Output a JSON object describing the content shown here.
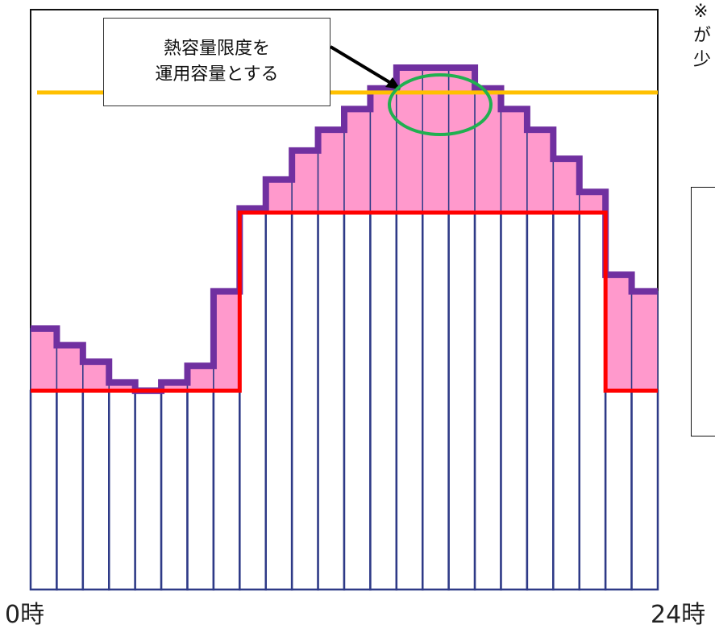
{
  "chart_data": {
    "type": "bar",
    "categories_count": 24,
    "demand": [
      63,
      59,
      55,
      50,
      48,
      50,
      54,
      72,
      92,
      99,
      106,
      111,
      116,
      121,
      126,
      126,
      126,
      121,
      116,
      111,
      104,
      96,
      76,
      72
    ],
    "limit_step": [
      48,
      48,
      48,
      48,
      48,
      48,
      48,
      48,
      91,
      91,
      91,
      91,
      91,
      91,
      91,
      91,
      91,
      91,
      91,
      91,
      91,
      91,
      48,
      48
    ],
    "operating_capacity_line": 120,
    "ylim": [
      0,
      140
    ],
    "x_start_label": "0時",
    "x_end_label": "24時",
    "colors": {
      "bar_fill": "#ff99cc",
      "bar_outline": "#2e3a87",
      "demand_line": "#7030a0",
      "limit_line": "#ff0000",
      "capacity_line": "#ffc000",
      "highlight_circle": "#20b050"
    }
  },
  "callout": {
    "line1": "熱容量限度を",
    "line2": "運用容量とする"
  },
  "note": {
    "line1": "※",
    "line2": "が",
    "line3": "少"
  }
}
